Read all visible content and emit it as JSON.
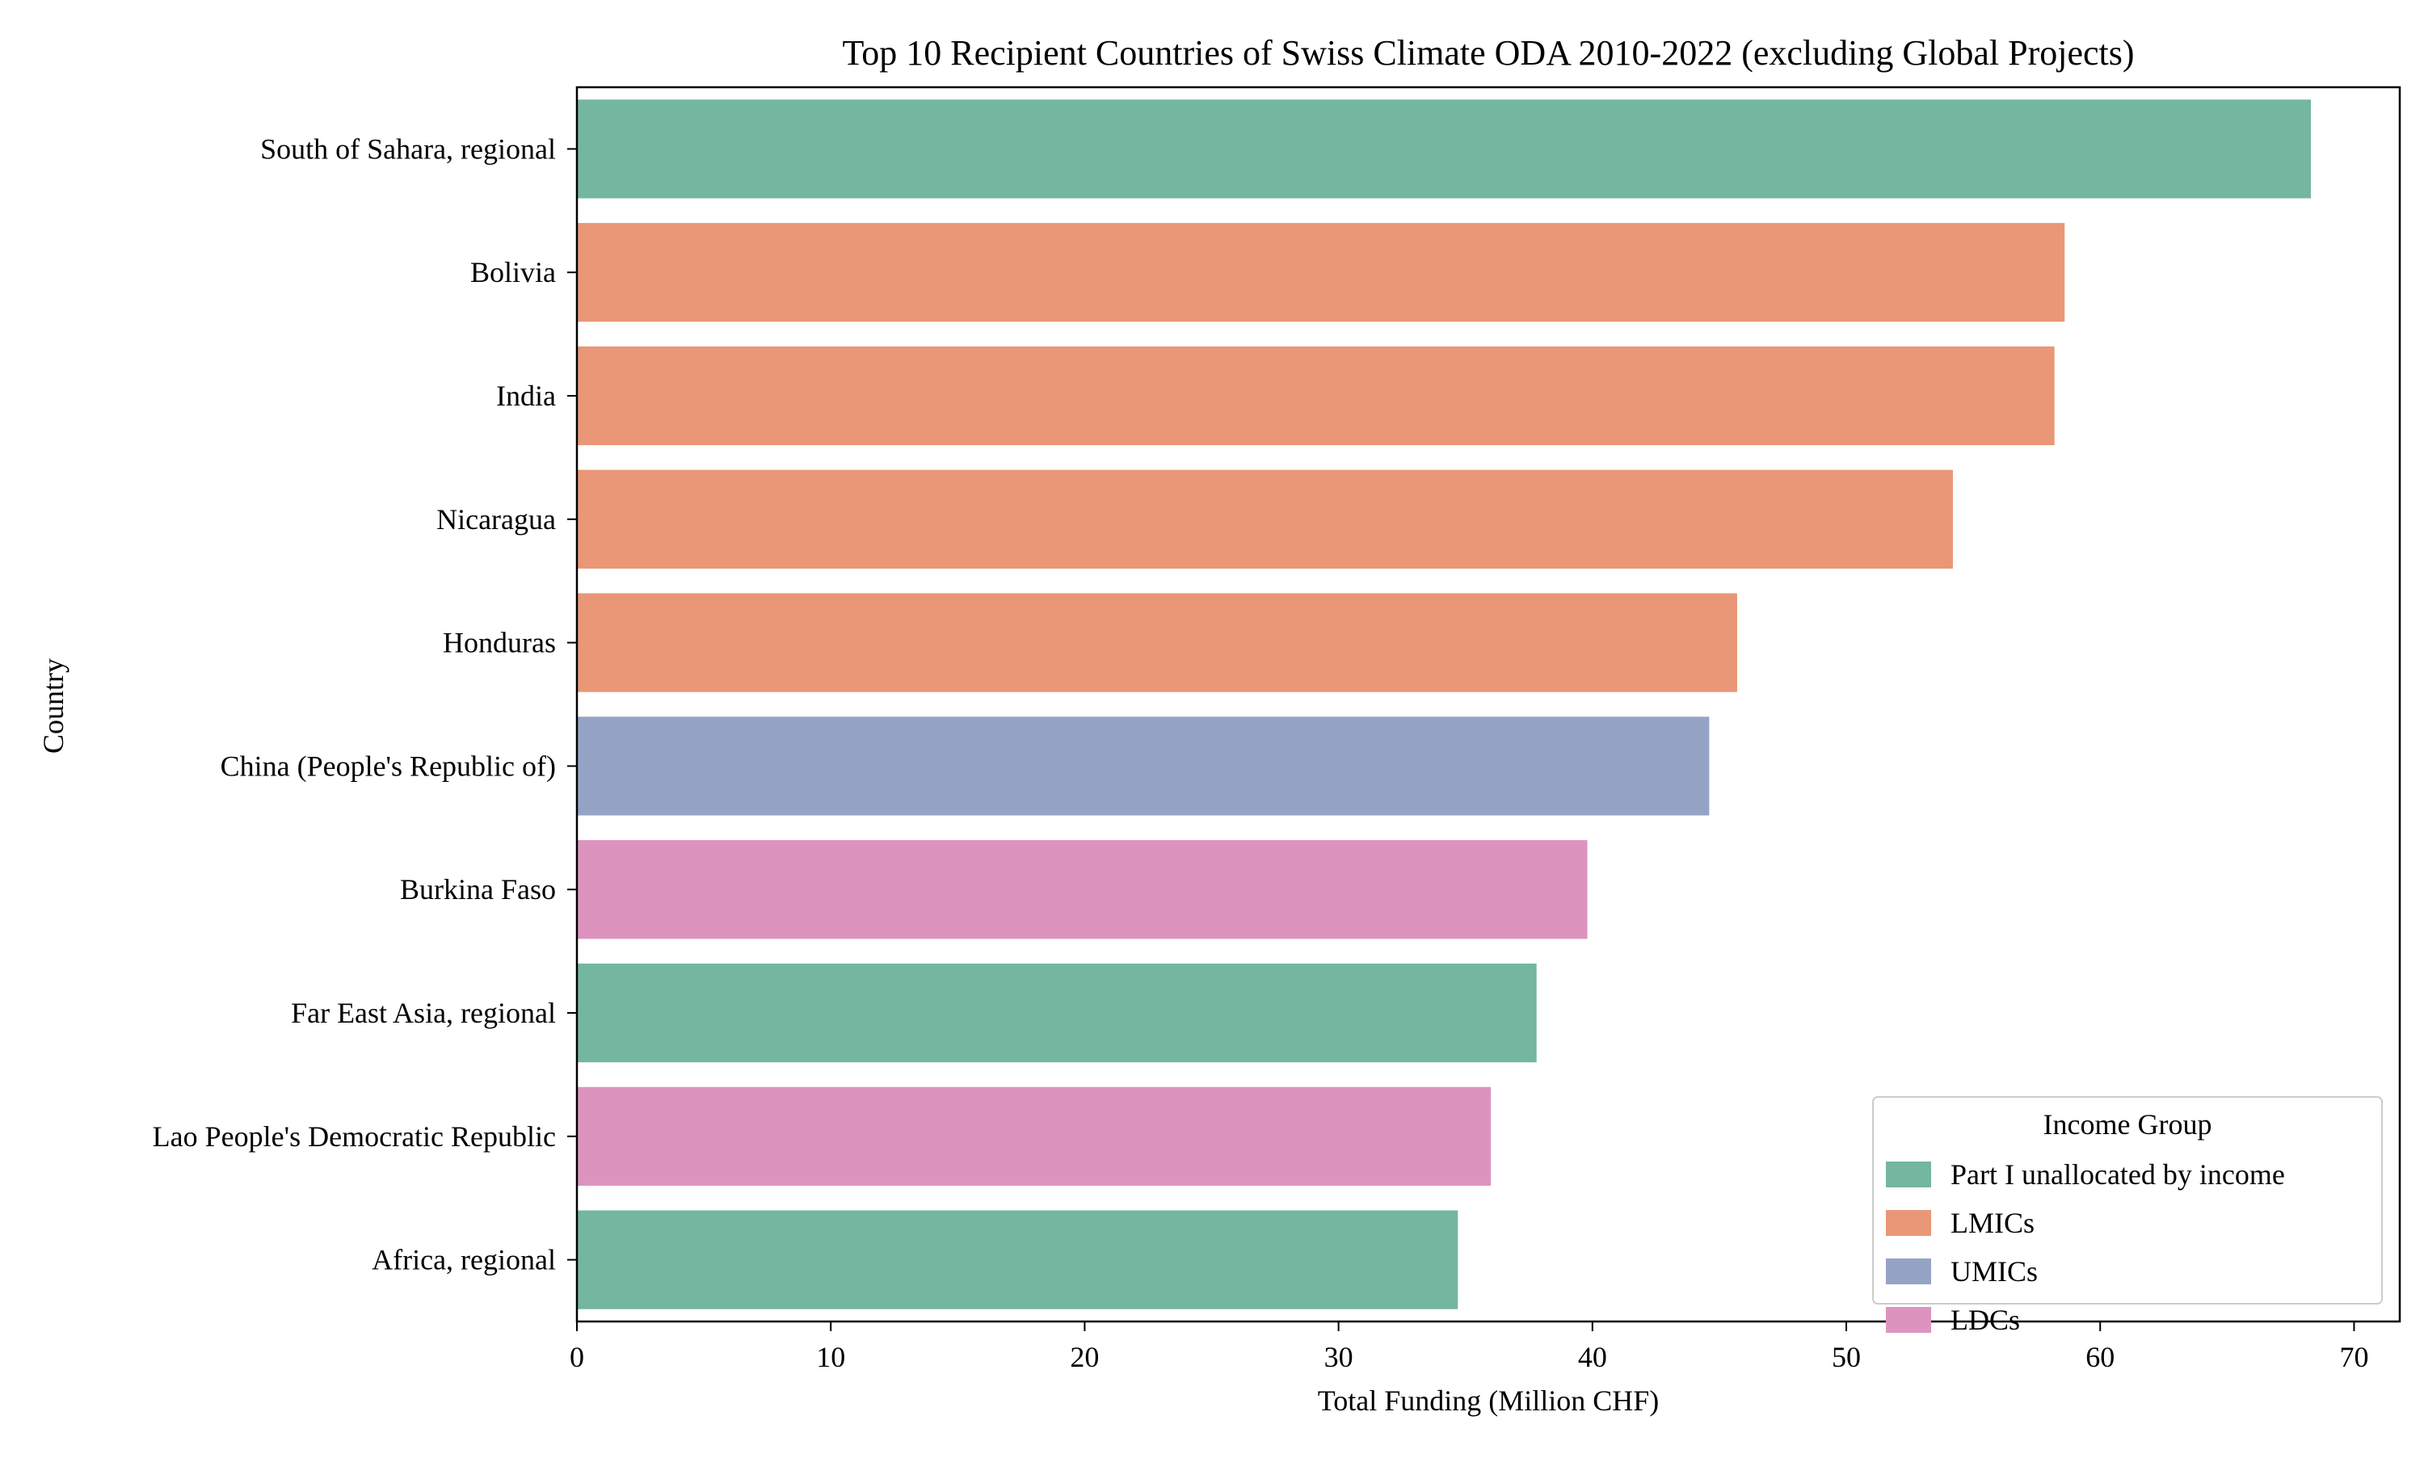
{
  "chart_data": {
    "type": "bar",
    "orientation": "horizontal",
    "title": "Top 10 Recipient Countries of Swiss Climate ODA 2010-2022 (excluding Global Projects)",
    "xlabel": "Total Funding (Million CHF)",
    "ylabel": "Country",
    "xlim": [
      0,
      71.8
    ],
    "xticks": [
      0,
      10,
      20,
      30,
      40,
      50,
      60,
      70
    ],
    "grid": false,
    "categories": [
      "South of Sahara, regional",
      "Bolivia",
      "India",
      "Nicaragua",
      "Honduras",
      "China (People's Republic of)",
      "Burkina Faso",
      "Far East Asia, regional",
      "Lao People's Democratic Republic",
      "Africa, regional"
    ],
    "values": [
      68.3,
      58.6,
      58.2,
      54.2,
      45.7,
      44.6,
      39.8,
      37.8,
      36.0,
      34.7
    ],
    "groups": [
      "Part I unallocated by income",
      "LMICs",
      "LMICs",
      "LMICs",
      "LMICs",
      "UMICs",
      "LDCs",
      "Part I unallocated by income",
      "LDCs",
      "Part I unallocated by income"
    ],
    "legend": {
      "title": "Income Group",
      "placement": "lower-right",
      "entries": [
        {
          "label": "Part I unallocated by income",
          "color": "#74b6a0"
        },
        {
          "label": "LMICs",
          "color": "#e99776"
        },
        {
          "label": "UMICs",
          "color": "#95a4c4"
        },
        {
          "label": "LDCs",
          "color": "#dc94bf"
        }
      ]
    }
  }
}
